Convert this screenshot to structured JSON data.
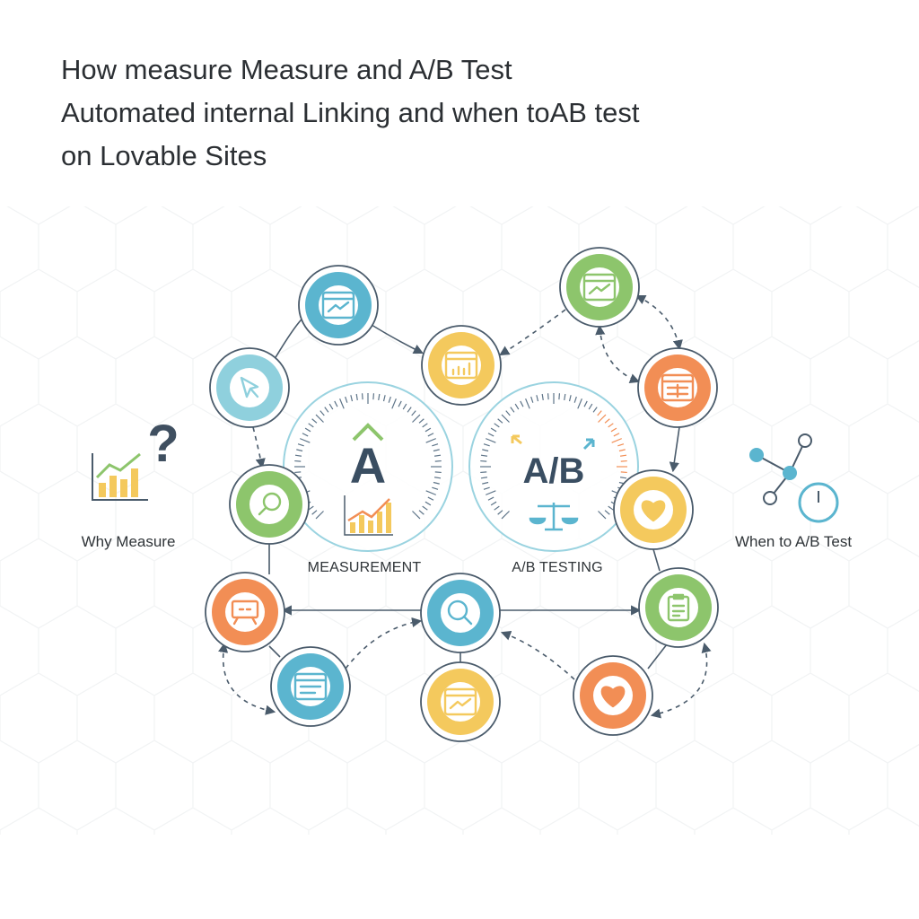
{
  "title": {
    "lines": [
      "How measure  Measure and A/B Test",
      "Automated internal Linking and when toAB test",
      "on Lovable Sites"
    ]
  },
  "side_labels": {
    "left": "Why Measure",
    "right": "When to A/B Test"
  },
  "gauges": [
    {
      "label": "MEASUREMENT",
      "glyph": "A"
    },
    {
      "label": "A/B TESTING",
      "glyph": "A/B"
    }
  ],
  "nodes": [
    {
      "icon": "browser-chart-icon",
      "color": "#5bb5cf"
    },
    {
      "icon": "cursor-icon",
      "color": "#8fd0dd"
    },
    {
      "icon": "bar-chart-icon",
      "color": "#f4c95d"
    },
    {
      "icon": "browser-chart-icon",
      "color": "#8dc56c"
    },
    {
      "icon": "browser-form-icon",
      "color": "#f28e55"
    },
    {
      "icon": "magnifier-icon",
      "color": "#8dc56c"
    },
    {
      "icon": "heart-icon",
      "color": "#f4c95d"
    },
    {
      "icon": "presentation-board-icon",
      "color": "#f28e55"
    },
    {
      "icon": "search-icon",
      "color": "#5bb5cf"
    },
    {
      "icon": "clipboard-icon",
      "color": "#8dc56c"
    },
    {
      "icon": "browser-list-icon",
      "color": "#5bb5cf"
    },
    {
      "icon": "browser-chart-icon",
      "color": "#f4c95d"
    },
    {
      "icon": "heart-icon",
      "color": "#f28e55"
    }
  ],
  "colors": {
    "ring": "#4a5b6b",
    "gauge": "#9ad3e0",
    "text": "#2b2f33"
  }
}
